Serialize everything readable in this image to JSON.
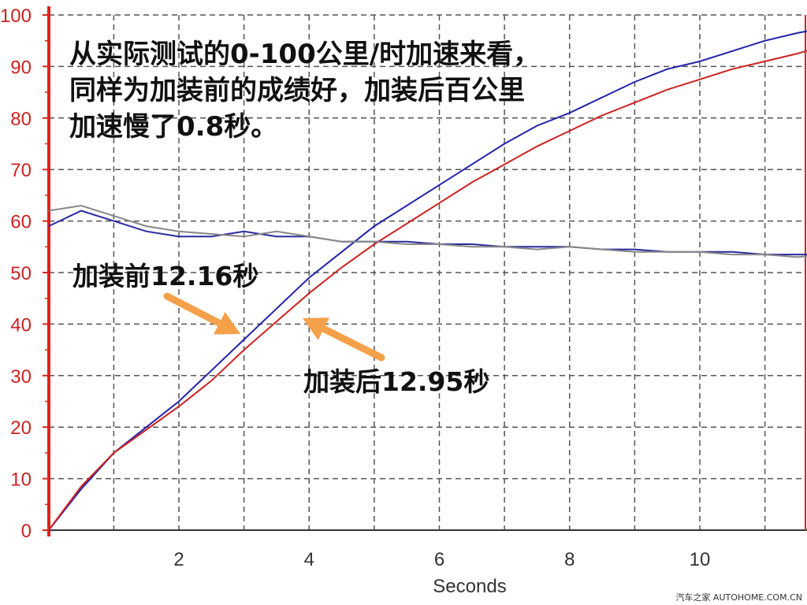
{
  "chart_data": {
    "type": "line",
    "xlabel": "Seconds",
    "ylabel": "",
    "xlim": [
      0,
      12
    ],
    "ylim": [
      0,
      100
    ],
    "x_ticks": [
      2,
      4,
      6,
      8,
      10
    ],
    "y_ticks": [
      0,
      10,
      20,
      30,
      40,
      50,
      60,
      70,
      80,
      90,
      100
    ],
    "grid": true,
    "series": [
      {
        "color": "#2222aa",
        "x": [
          0,
          0.5,
          1,
          1.5,
          2,
          2.5,
          3,
          3.5,
          4,
          4.5,
          5,
          5.5,
          6,
          6.5,
          7,
          7.5,
          8,
          8.5,
          9,
          9.5,
          10,
          10.5,
          11,
          11.5,
          11.9
        ],
        "y": [
          0,
          8,
          15,
          20,
          25,
          31,
          37,
          43,
          49,
          54,
          59,
          63,
          67,
          71,
          75,
          78.5,
          81,
          84,
          87,
          89.5,
          91,
          93,
          95,
          96.5,
          97.5
        ]
      },
      {
        "color": "#cc2222",
        "x": [
          0,
          0.5,
          1,
          1.5,
          2,
          2.5,
          3,
          3.5,
          4,
          4.5,
          5,
          5.5,
          6,
          6.5,
          7,
          7.5,
          8,
          8.5,
          9,
          9.5,
          10,
          10.5,
          11,
          11.5,
          11.9
        ],
        "y": [
          0,
          8.5,
          15,
          19.5,
          24,
          29,
          35,
          40.5,
          46,
          51,
          55.5,
          59.5,
          63.5,
          67.5,
          71,
          74.5,
          77.5,
          80.5,
          83,
          85.5,
          87.5,
          89.5,
          91,
          92.5,
          94
        ]
      },
      {
        "color": "#2a2aa0",
        "x": [
          0,
          0.5,
          1,
          1.5,
          2,
          2.5,
          3,
          3.5,
          4,
          4.5,
          5,
          5.5,
          6,
          6.5,
          7,
          7.5,
          8,
          8.5,
          9,
          9.5,
          10,
          10.5,
          11,
          11.5,
          11.9
        ],
        "y": [
          59,
          62,
          60,
          58,
          57,
          57,
          58,
          57,
          57,
          56,
          56,
          56,
          55.5,
          55.5,
          55,
          55,
          55,
          54.5,
          54.5,
          54,
          54,
          54,
          53.5,
          53.5,
          53.5
        ]
      },
      {
        "color": "#888888",
        "x": [
          0,
          0.5,
          1,
          1.5,
          2,
          2.5,
          3,
          3.5,
          4,
          4.5,
          5,
          5.5,
          6,
          6.5,
          7,
          7.5,
          8,
          8.5,
          9,
          9.5,
          10,
          10.5,
          11,
          11.5,
          11.9
        ],
        "y": [
          62,
          63,
          61,
          59,
          58,
          57.5,
          57,
          58,
          57,
          56,
          56,
          55.5,
          55.5,
          55,
          55,
          54.5,
          55,
          54.5,
          54,
          54,
          54,
          53.5,
          53.5,
          53,
          53.5
        ]
      }
    ],
    "arrows_color": "#f5a04a"
  },
  "headline": "从实际测试的0-100公里/时加速来看，同样为加装前的成绩好，加装后百公里加速慢了0.8秒。",
  "callouts": {
    "before": "加装前12.16秒",
    "after": "加装后12.95秒"
  },
  "watermark": "汽车之家 AUTOHOME.COM.CN"
}
